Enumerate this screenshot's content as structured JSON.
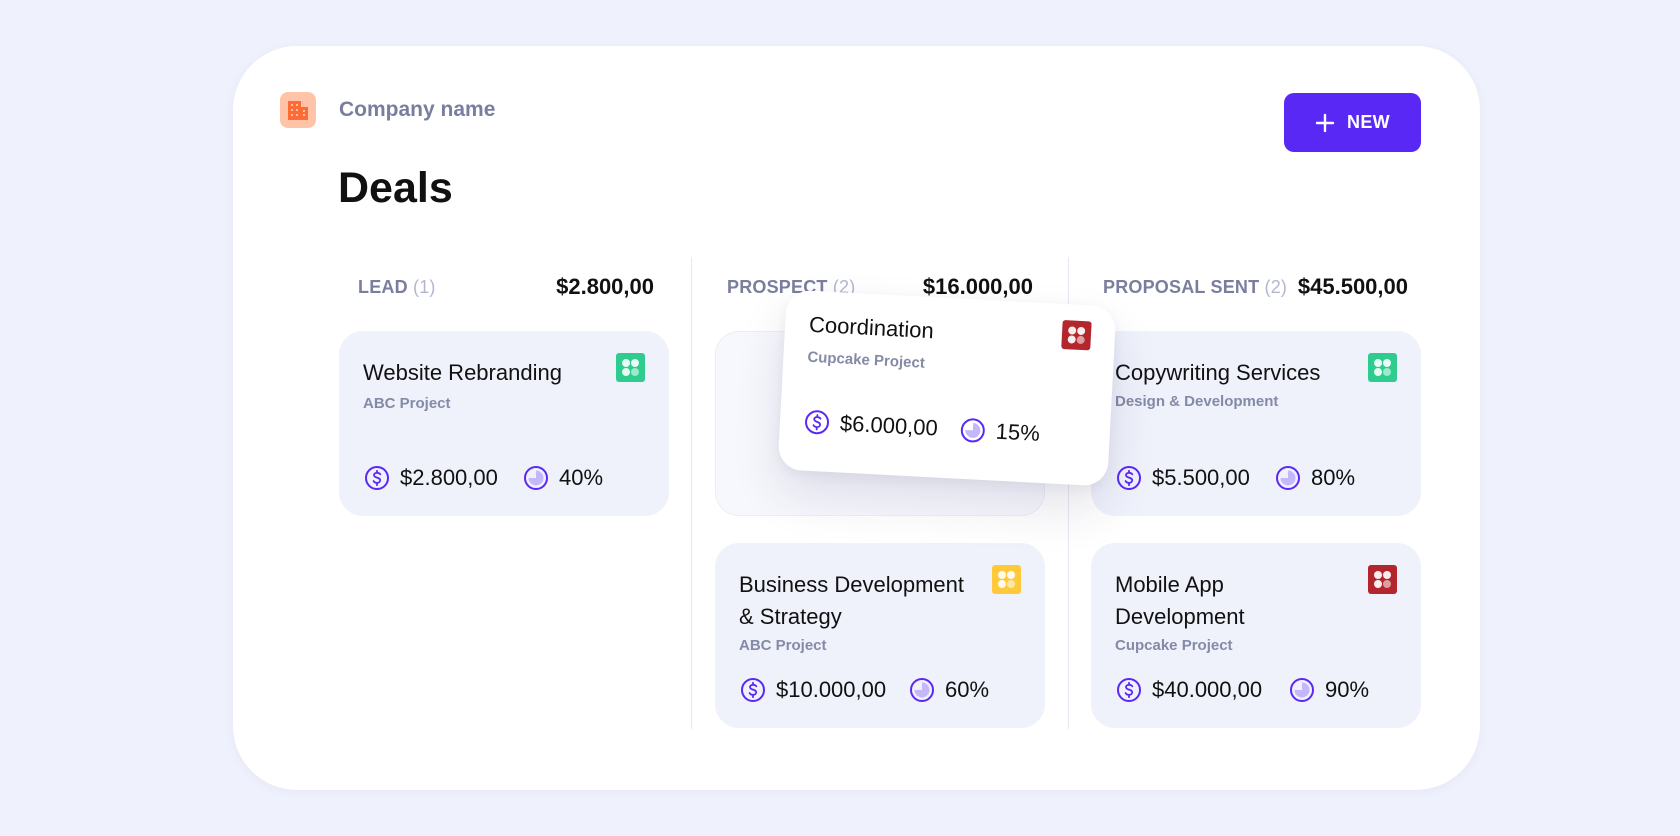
{
  "company": {
    "name": "Company name",
    "icon": "building-icon",
    "icon_color": "#ff6b35"
  },
  "header": {
    "new_button_label": "NEW",
    "new_icon": "plus-icon"
  },
  "page": {
    "title": "Deals"
  },
  "accent_color": "#5a28f5",
  "columns": [
    {
      "name": "LEAD",
      "count": "(1)",
      "total": "$2.800,00",
      "cards": [
        {
          "title": "Website Rebranding",
          "project": "ABC Project",
          "icon": "green-blocks-icon",
          "icon_color": "#2dcc8f",
          "value": "$2.800,00",
          "probability": "40%"
        }
      ]
    },
    {
      "name": "PROSPECT",
      "count": "(2)",
      "total": "$16.000,00",
      "cards": [
        {
          "title": "Business Development & Strategy",
          "project": "ABC Project",
          "icon": "yellow-blocks-icon",
          "icon_color": "#ffc93c",
          "value": "$10.000,00",
          "probability": "60%"
        }
      ]
    },
    {
      "name": "PROPOSAL SENT",
      "count": "(2)",
      "total": "$45.500,00",
      "cards": [
        {
          "title": "Copywriting Services",
          "project": "Design & Development",
          "icon": "green-blocks-icon",
          "icon_color": "#2dcc8f",
          "value": "$5.500,00",
          "probability": "80%"
        },
        {
          "title": "Mobile App Development",
          "project": "Cupcake Project",
          "icon": "red-blocks-icon",
          "icon_color": "#b3262d",
          "value": "$40.000,00",
          "probability": "90%"
        }
      ]
    }
  ],
  "dragged_card": {
    "title": "Coordination",
    "project": "Cupcake Project",
    "icon": "red-blocks-icon",
    "icon_color": "#b3262d",
    "value": "$6.000,00",
    "probability": "15%"
  }
}
